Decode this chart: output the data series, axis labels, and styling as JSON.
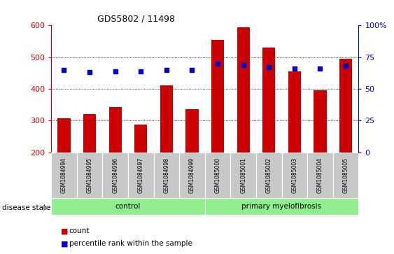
{
  "title": "GDS5802 / 11498",
  "samples": [
    "GSM1084994",
    "GSM1084995",
    "GSM1084996",
    "GSM1084997",
    "GSM1084998",
    "GSM1084999",
    "GSM1085000",
    "GSM1085001",
    "GSM1085002",
    "GSM1085003",
    "GSM1085004",
    "GSM1085005"
  ],
  "counts": [
    308,
    320,
    342,
    287,
    412,
    336,
    554,
    595,
    531,
    456,
    395,
    495
  ],
  "percentiles": [
    65,
    63,
    64,
    64,
    65,
    65,
    70,
    69,
    67,
    66,
    66,
    68
  ],
  "ylim_left": [
    200,
    600
  ],
  "ylim_right": [
    0,
    100
  ],
  "yticks_left": [
    200,
    300,
    400,
    500,
    600
  ],
  "yticks_right": [
    0,
    25,
    50,
    75,
    100
  ],
  "bar_color": "#cc0000",
  "dot_color": "#0000cc",
  "group_bg_light": "#b2f0b2",
  "group_bg_dark": "#5cd65c",
  "xlabel_bg": "#c8c8c8",
  "legend_items": [
    {
      "color": "#cc0000",
      "label": "count"
    },
    {
      "color": "#0000cc",
      "label": "percentile rank within the sample"
    }
  ],
  "groups": [
    {
      "start": 0,
      "end": 5,
      "label": "control"
    },
    {
      "start": 6,
      "end": 11,
      "label": "primary myelofibrosis"
    }
  ]
}
